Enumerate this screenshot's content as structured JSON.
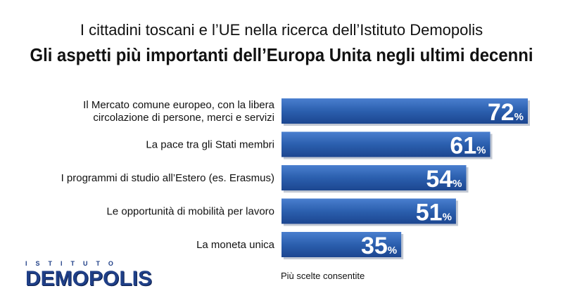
{
  "chart_data": {
    "type": "bar",
    "orientation": "horizontal",
    "subtitle": "I cittadini toscani e l’UE nella ricerca dell’Istituto Demopolis",
    "title": "Gli aspetti più importanti dell’Europa Unita negli ultimi decenni",
    "categories": [
      [
        "Il Mercato comune europeo, con la libera",
        "circolazione di persone, merci e servizi"
      ],
      [
        "La pace tra gli Stati membri"
      ],
      [
        "I programmi di studio all’Estero (es. Erasmus)"
      ],
      [
        "Le opportunità di mobilità per lavoro"
      ],
      [
        "La moneta unica"
      ]
    ],
    "values": [
      72,
      61,
      54,
      51,
      35
    ],
    "value_suffix": "%",
    "bar_color": "#2b5fae",
    "xlim": [
      0,
      100
    ],
    "note": "Più scelte consentite"
  },
  "logo": {
    "top_text": "ISTITUTO",
    "main_text": "DEMOPOLIS"
  }
}
